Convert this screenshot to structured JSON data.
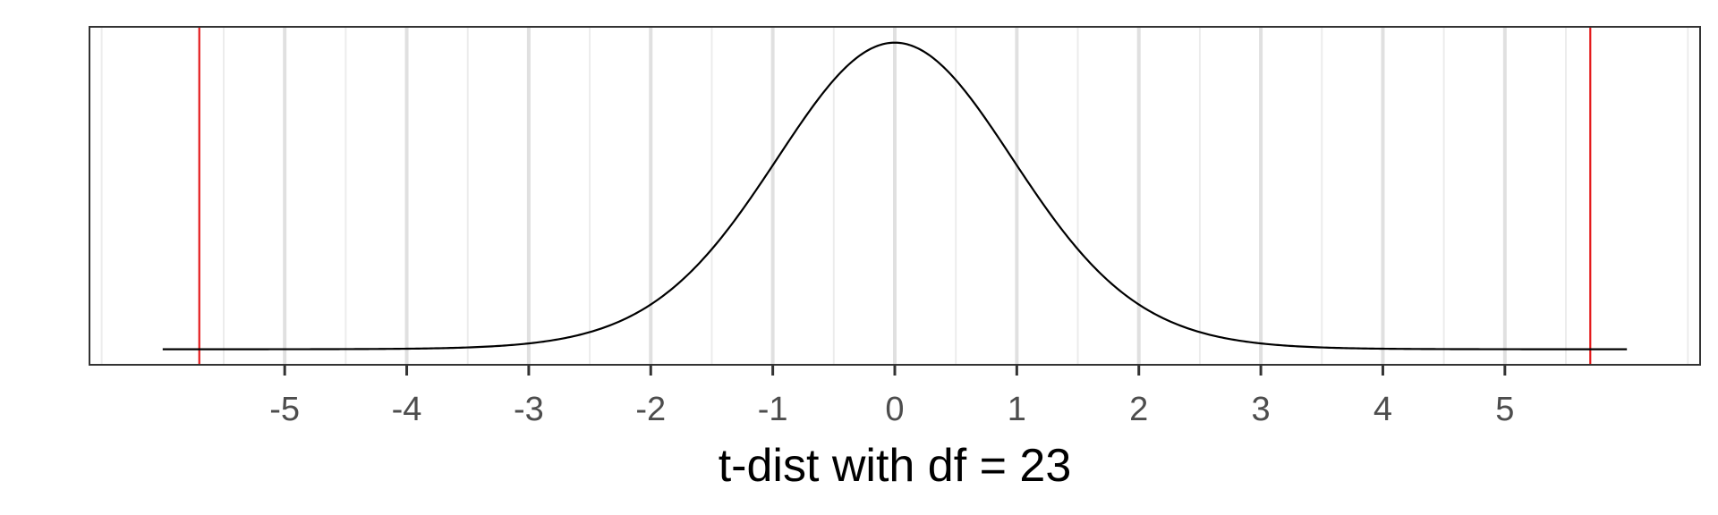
{
  "chart_data": {
    "type": "line",
    "title": "",
    "xlabel": "t-dist with df = 23",
    "ylabel": "",
    "df": 23,
    "xlim": [
      -6.6,
      6.6
    ],
    "ylim": [
      -0.02,
      0.415
    ],
    "x_ticks": [
      -5,
      -4,
      -3,
      -2,
      -1,
      0,
      1,
      2,
      3,
      4,
      5
    ],
    "x_tick_labels": [
      "-5",
      "-4",
      "-3",
      "-2",
      "-1",
      "0",
      "1",
      "2",
      "3",
      "4",
      "5"
    ],
    "curve_range": [
      -6,
      6
    ],
    "critical_lines": [
      -5.7,
      5.7
    ],
    "grid": true,
    "y_axis_shown": false,
    "colors": {
      "curve": "#000000",
      "critical": "#e41a1c",
      "grid_major": "#e0e0e0",
      "grid_minor": "#ececec",
      "panel_border": "#333333",
      "tick_label": "#4d4d4d"
    }
  }
}
